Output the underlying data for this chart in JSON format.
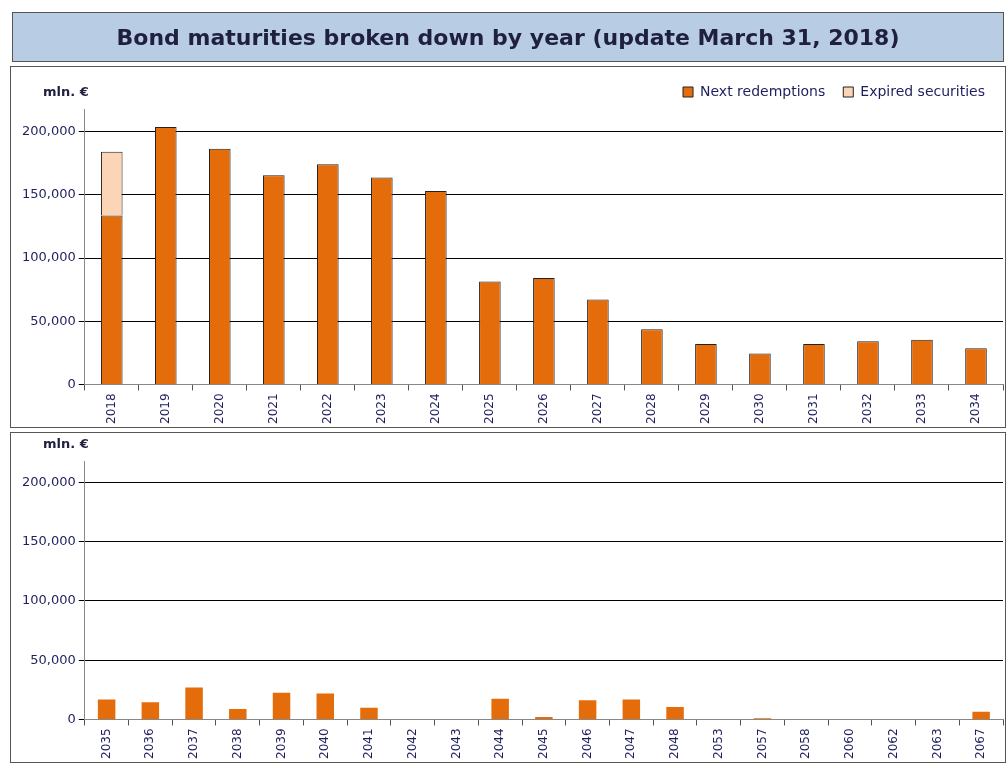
{
  "chart_data": [
    {
      "type": "bar",
      "title": "Bond maturities broken down by year (update March 31, 2018)",
      "ylabel": "mln. €",
      "stacked": true,
      "legend": "top right",
      "grid": "y",
      "categories": [
        "2018",
        "2019",
        "2020",
        "2021",
        "2022",
        "2023",
        "2024",
        "2025",
        "2026",
        "2027",
        "2028",
        "2029",
        "2030",
        "2031",
        "2032",
        "2033",
        "2034"
      ],
      "ylim": [
        0,
        218000
      ],
      "yticks": [
        {
          "value": 0,
          "label": "0"
        },
        {
          "value": 50000,
          "label": "50,000"
        },
        {
          "value": 100000,
          "label": "100,000"
        },
        {
          "value": 150000,
          "label": "150,000"
        },
        {
          "value": 200000,
          "label": "200,000"
        }
      ],
      "series": [
        {
          "name": "Next redemptions",
          "color": "#e46c0a",
          "values": [
            133800,
            203700,
            186500,
            165600,
            174300,
            163700,
            153100,
            81400,
            84200,
            67300,
            43700,
            32100,
            24600,
            32100,
            34200,
            35300,
            28600
          ]
        },
        {
          "name": "Expired securities",
          "color": "#fbd5b5",
          "values": [
            50300,
            null,
            null,
            null,
            null,
            null,
            null,
            null,
            null,
            null,
            null,
            null,
            null,
            null,
            null,
            null,
            null
          ]
        }
      ]
    },
    {
      "type": "bar",
      "ylabel": "mln. €",
      "grid": "y",
      "categories": [
        "2035",
        "2036",
        "2037",
        "2038",
        "2039",
        "2040",
        "2041",
        "2042",
        "2043",
        "2044",
        "2045",
        "2046",
        "2047",
        "2048",
        "2053",
        "2057",
        "2058",
        "2060",
        "2062",
        "2063",
        "2067"
      ],
      "ylim": [
        0,
        218000
      ],
      "yticks": [
        {
          "value": 0,
          "label": "0"
        },
        {
          "value": 50000,
          "label": "50,000"
        },
        {
          "value": 100000,
          "label": "100,000"
        },
        {
          "value": 150000,
          "label": "150,000"
        },
        {
          "value": 200000,
          "label": "200,000"
        }
      ],
      "series": [
        {
          "color": "#e46c0a",
          "values": [
            16800,
            14600,
            27000,
            8900,
            22600,
            21900,
            9800,
            0,
            0,
            17400,
            2000,
            16300,
            16800,
            10600,
            0,
            1000,
            0,
            0,
            0,
            0,
            6400
          ]
        }
      ]
    }
  ]
}
